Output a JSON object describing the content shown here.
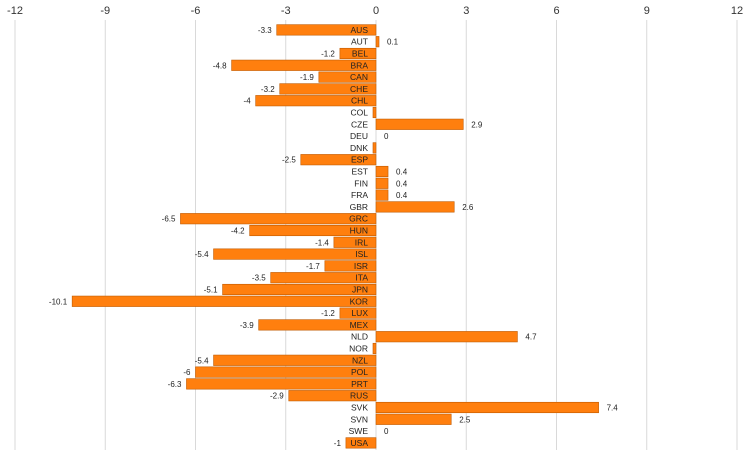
{
  "chart_data": {
    "type": "bar",
    "orientation": "horizontal",
    "title": "",
    "xlabel": "",
    "ylabel": "",
    "xlim": [
      -12,
      12
    ],
    "x_ticks": [
      -12,
      -9,
      -6,
      -3,
      0,
      3,
      6,
      9,
      12
    ],
    "x_tick_labels": [
      "-12",
      "-9",
      "-6",
      "-3",
      "0",
      "3",
      "6",
      "9",
      "12"
    ],
    "x_axis_position": "top",
    "grid": "vertical",
    "legend": "none",
    "bar_color": "#ff7f0e",
    "bar_edge_color": "#c05a00",
    "grid_color": "#d9d9d9",
    "categories": [
      "AUS",
      "AUT",
      "BEL",
      "BRA",
      "CAN",
      "CHE",
      "CHL",
      "COL",
      "CZE",
      "DEU",
      "DNK",
      "ESP",
      "EST",
      "FIN",
      "FRA",
      "GBR",
      "GRC",
      "HUN",
      "IRL",
      "ISL",
      "ISR",
      "ITA",
      "JPN",
      "KOR",
      "LUX",
      "MEX",
      "NLD",
      "NOR",
      "NZL",
      "POL",
      "PRT",
      "RUS",
      "SVK",
      "SVN",
      "SWE",
      "USA"
    ],
    "values": [
      -3.3,
      0.1,
      -1.2,
      -4.8,
      -1.9,
      -3.2,
      -4,
      -0.1,
      2.9,
      0,
      -0.1,
      -2.5,
      0.4,
      0.4,
      0.4,
      2.6,
      -6.5,
      -4.2,
      -1.4,
      -5.4,
      -1.7,
      -3.5,
      -5.1,
      -10.1,
      -1.2,
      -3.9,
      4.7,
      -0.1,
      -5.4,
      -6,
      -6.3,
      -2.9,
      7.4,
      2.5,
      0,
      -1
    ],
    "data_labels": [
      "-3.3",
      "0.1",
      "-1.2",
      "-4.8",
      "-1.9",
      "-3.2",
      "-4",
      "",
      "2.9",
      "0",
      "",
      "-2.5",
      "0.4",
      "0.4",
      "0.4",
      "2.6",
      "-6.5",
      "-4.2",
      "-1.4",
      "-5.4",
      "-1.7",
      "-3.5",
      "-5.1",
      "-10.1",
      "-1.2",
      "-3.9",
      "4.7",
      "",
      "-5.4",
      "-6",
      "-6.3",
      "-2.9",
      "7.4",
      "2.5",
      "0",
      "-1"
    ]
  }
}
